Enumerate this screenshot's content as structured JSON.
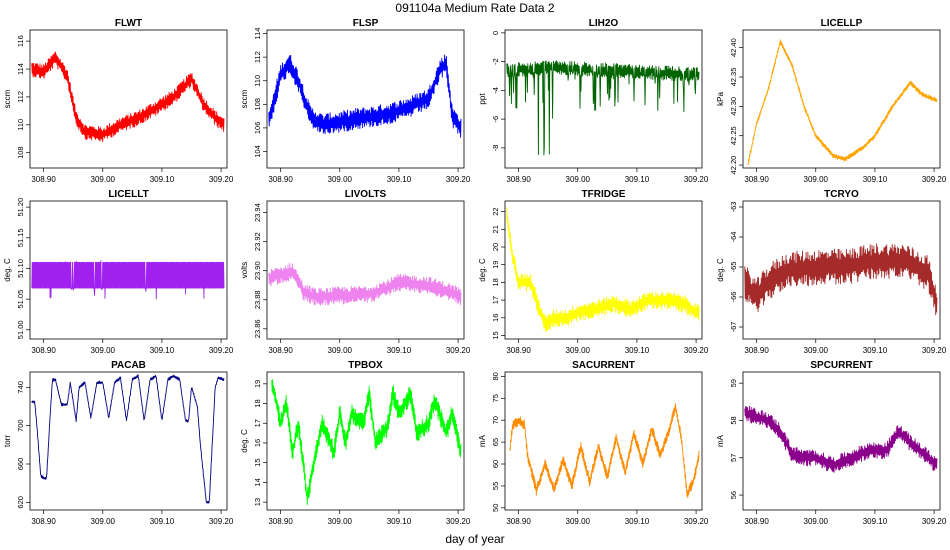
{
  "figure": {
    "title": "091104a   Medium Rate Data 2",
    "xlabel": "day of year"
  },
  "chart_data": [
    {
      "type": "line",
      "title": "FLWT",
      "ylabel": "sccm",
      "color": "#ff0000",
      "noise": 0.55,
      "xlim": [
        308.877,
        309.21
      ],
      "ylim": [
        106.9,
        116.8
      ],
      "xticks": [
        308.9,
        309.0,
        309.1,
        309.2
      ],
      "xtick_labels": [
        "308.90",
        "309.00",
        "309.10",
        "309.20"
      ],
      "yticks": [
        108,
        110,
        112,
        114,
        116
      ],
      "ytick_labels": [
        "108",
        "110",
        "112",
        "114",
        "116"
      ],
      "series": [
        {
          "name": "FLWT",
          "x": [
            308.88,
            308.9,
            308.92,
            308.94,
            308.955,
            308.97,
            309.0,
            309.03,
            309.06,
            309.09,
            309.12,
            309.15,
            309.17,
            309.19,
            309.205
          ],
          "y": [
            114,
            113.8,
            114.8,
            113.5,
            110.5,
            109.5,
            109.3,
            110,
            110.5,
            111.2,
            112,
            113.3,
            111.5,
            110.5,
            110
          ]
        }
      ]
    },
    {
      "type": "line",
      "title": "FLSP",
      "ylabel": "sccm",
      "color": "#0000ff",
      "noise": 0.9,
      "xlim": [
        308.877,
        309.21
      ],
      "ylim": [
        102.6,
        114.3
      ],
      "xticks": [
        308.9,
        309.0,
        309.1,
        309.2
      ],
      "xtick_labels": [
        "308.90",
        "309.00",
        "309.10",
        "309.20"
      ],
      "yticks": [
        104,
        106,
        108,
        110,
        112,
        114
      ],
      "ytick_labels": [
        "104",
        "106",
        "108",
        "110",
        "112",
        "114"
      ],
      "series": [
        {
          "name": "FLSP",
          "x": [
            308.88,
            308.9,
            308.915,
            308.93,
            308.95,
            308.97,
            309.0,
            309.03,
            309.06,
            309.09,
            309.12,
            309.15,
            309.17,
            309.18,
            309.19,
            309.205
          ],
          "y": [
            106.5,
            110.5,
            111.5,
            110,
            107,
            106.3,
            106.5,
            106.8,
            107,
            107.3,
            107.8,
            108.5,
            111,
            111.5,
            107,
            106
          ]
        }
      ]
    },
    {
      "type": "line",
      "title": "LIH2O",
      "ylabel": "ppt",
      "color": "#006400",
      "noise": 0.5,
      "spikes": "down",
      "xlim": [
        308.877,
        309.21
      ],
      "ylim": [
        -9.4,
        0.2
      ],
      "xticks": [
        308.9,
        309.0,
        309.1,
        309.2
      ],
      "xtick_labels": [
        "308.90",
        "309.00",
        "309.10",
        "309.20"
      ],
      "yticks": [
        -8,
        -6,
        -4,
        -2,
        0
      ],
      "ytick_labels": [
        "-8",
        "-6",
        "-4",
        "-2",
        "0"
      ],
      "series": [
        {
          "name": "LIH2O",
          "x": [
            308.88,
            308.92,
            308.96,
            309.0,
            309.05,
            309.1,
            309.15,
            309.205
          ],
          "y": [
            -2.6,
            -2.5,
            -2.4,
            -2.5,
            -2.6,
            -2.7,
            -2.8,
            -2.9
          ]
        }
      ]
    },
    {
      "type": "line",
      "title": "LICELLP",
      "ylabel": "kPa",
      "color": "#ffa500",
      "noise": 0.004,
      "xlim": [
        308.877,
        309.21
      ],
      "ylim": [
        42.195,
        42.43
      ],
      "xticks": [
        308.9,
        309.0,
        309.1,
        309.2
      ],
      "xtick_labels": [
        "308.90",
        "309.00",
        "309.10",
        "309.20"
      ],
      "yticks": [
        42.2,
        42.25,
        42.3,
        42.35,
        42.4
      ],
      "ytick_labels": [
        "42.20",
        "42.25",
        "42.30",
        "42.35",
        "42.40"
      ],
      "series": [
        {
          "name": "LICELLP",
          "x": [
            308.885,
            308.9,
            308.92,
            308.94,
            308.96,
            308.98,
            309.0,
            309.03,
            309.05,
            309.08,
            309.1,
            309.13,
            309.16,
            309.18,
            309.205
          ],
          "y": [
            42.2,
            42.27,
            42.33,
            42.41,
            42.37,
            42.3,
            42.25,
            42.215,
            42.21,
            42.23,
            42.25,
            42.3,
            42.34,
            42.32,
            42.31
          ]
        }
      ]
    },
    {
      "type": "line",
      "title": "LICELLT",
      "ylabel": "deg. C",
      "color": "#a020f0",
      "noise": 0.0,
      "band": [
        51.068,
        51.11
      ],
      "spikes": "both",
      "xlim": [
        308.877,
        309.21
      ],
      "ylim": [
        50.985,
        51.21
      ],
      "xticks": [
        308.9,
        309.0,
        309.1,
        309.2
      ],
      "xtick_labels": [
        "308.90",
        "309.00",
        "309.10",
        "309.20"
      ],
      "yticks": [
        51.0,
        51.05,
        51.1,
        51.15,
        51.2
      ],
      "ytick_labels": [
        "51.00",
        "51.05",
        "51.10",
        "51.15",
        "51.20"
      ],
      "series": [
        {
          "name": "LICELLT",
          "x": [
            308.88,
            309.205
          ],
          "y": [
            51.09,
            51.09
          ]
        }
      ]
    },
    {
      "type": "line",
      "title": "LIVOLTS",
      "ylabel": "volts",
      "color": "#ee82ee",
      "noise": 0.006,
      "xlim": [
        308.877,
        309.21
      ],
      "ylim": [
        23.853,
        23.948
      ],
      "xticks": [
        308.9,
        309.0,
        309.1,
        309.2
      ],
      "xtick_labels": [
        "308.90",
        "309.00",
        "309.10",
        "309.20"
      ],
      "yticks": [
        23.86,
        23.88,
        23.9,
        23.92,
        23.94
      ],
      "ytick_labels": [
        "23.86",
        "23.88",
        "23.90",
        "23.92",
        "23.94"
      ],
      "series": [
        {
          "name": "LIVOLTS",
          "x": [
            308.88,
            308.9,
            308.92,
            308.94,
            308.96,
            309.0,
            309.05,
            309.08,
            309.1,
            309.15,
            309.19,
            309.205
          ],
          "y": [
            23.895,
            23.897,
            23.9,
            23.885,
            23.882,
            23.883,
            23.884,
            23.888,
            23.892,
            23.89,
            23.885,
            23.882
          ]
        }
      ]
    },
    {
      "type": "line",
      "title": "TFRIDGE",
      "ylabel": "deg. C",
      "color": "#ffff00",
      "noise": 0.5,
      "xlim": [
        308.877,
        309.21
      ],
      "ylim": [
        14.8,
        22.6
      ],
      "xticks": [
        308.9,
        309.0,
        309.1,
        309.2
      ],
      "xtick_labels": [
        "308.90",
        "309.00",
        "309.10",
        "309.20"
      ],
      "yticks": [
        15,
        16,
        17,
        18,
        19,
        20,
        21,
        22
      ],
      "ytick_labels": [
        "15",
        "16",
        "17",
        "18",
        "19",
        "20",
        "21",
        "22"
      ],
      "series": [
        {
          "name": "TFRIDGE",
          "x": [
            308.88,
            308.89,
            308.9,
            308.92,
            308.935,
            308.945,
            308.96,
            308.98,
            309.0,
            309.03,
            309.06,
            309.09,
            309.12,
            309.15,
            309.18,
            309.205
          ],
          "y": [
            22,
            19.5,
            18,
            18,
            16.5,
            15.6,
            16,
            16,
            16.3,
            16.5,
            16.8,
            16.5,
            17,
            17,
            16.8,
            16.2
          ]
        }
      ]
    },
    {
      "type": "line",
      "title": "TCRYO",
      "ylabel": "deg. C",
      "color": "#a52a2a",
      "noise": 0.6,
      "xlim": [
        308.877,
        309.21
      ],
      "ylim": [
        -67.4,
        -62.8
      ],
      "xticks": [
        308.9,
        309.0,
        309.1,
        309.2
      ],
      "xtick_labels": [
        "308.90",
        "309.00",
        "309.10",
        "309.20"
      ],
      "yticks": [
        -67,
        -66,
        -65,
        -64,
        -63
      ],
      "ytick_labels": [
        "-67",
        "-66",
        "-65",
        "-64",
        "-63"
      ],
      "series": [
        {
          "name": "TCRYO",
          "x": [
            308.88,
            308.9,
            308.92,
            308.95,
            309.0,
            309.05,
            309.1,
            309.15,
            309.19,
            309.205
          ],
          "y": [
            -65.5,
            -66,
            -65.5,
            -65.1,
            -65,
            -65,
            -64.8,
            -64.8,
            -65.2,
            -66.3
          ]
        }
      ]
    },
    {
      "type": "line",
      "title": "PACAB",
      "ylabel": "torr",
      "color": "#000080",
      "noise": 1.5,
      "xlim": [
        308.877,
        309.21
      ],
      "ylim": [
        612,
        756
      ],
      "xticks": [
        308.9,
        309.0,
        309.1,
        309.2
      ],
      "xtick_labels": [
        "308.90",
        "309.00",
        "309.10",
        "309.20"
      ],
      "yticks": [
        620,
        660,
        700,
        740
      ],
      "ytick_labels": [
        "620",
        "660",
        "700",
        "740"
      ],
      "series": [
        {
          "name": "PACAB",
          "x": [
            308.88,
            308.885,
            308.89,
            308.895,
            308.9,
            308.905,
            308.91,
            308.915,
            308.92,
            308.93,
            308.94,
            308.945,
            308.955,
            308.96,
            308.97,
            308.98,
            308.99,
            309.0,
            309.01,
            309.02,
            309.03,
            309.04,
            309.05,
            309.06,
            309.07,
            309.08,
            309.09,
            309.1,
            309.11,
            309.12,
            309.13,
            309.14,
            309.145,
            309.15,
            309.16,
            309.165,
            309.175,
            309.18,
            309.19,
            309.195,
            309.205
          ],
          "y": [
            725,
            725,
            690,
            648,
            645,
            645,
            700,
            748,
            748,
            722,
            722,
            745,
            705,
            740,
            745,
            708,
            745,
            745,
            708,
            745,
            750,
            705,
            748,
            752,
            705,
            748,
            752,
            705,
            748,
            752,
            748,
            705,
            705,
            740,
            720,
            680,
            620,
            620,
            740,
            750,
            748
          ]
        }
      ]
    },
    {
      "type": "line",
      "title": "TPBOX",
      "ylabel": "deg. C",
      "color": "#00ff00",
      "noise": 0.5,
      "xlim": [
        308.877,
        309.21
      ],
      "ylim": [
        12.6,
        19.6
      ],
      "xticks": [
        308.9,
        309.0,
        309.1,
        309.2
      ],
      "xtick_labels": [
        "308.90",
        "309.00",
        "309.10",
        "309.20"
      ],
      "yticks": [
        13,
        14,
        15,
        16,
        17,
        18,
        19
      ],
      "ytick_labels": [
        "13",
        "14",
        "15",
        "16",
        "17",
        "18",
        "19"
      ],
      "series": [
        {
          "name": "TPBOX",
          "x": [
            308.885,
            308.89,
            308.9,
            308.91,
            308.92,
            308.93,
            308.94,
            308.945,
            308.96,
            308.97,
            308.99,
            309.0,
            309.01,
            309.02,
            309.04,
            309.05,
            309.06,
            309.08,
            309.09,
            309.1,
            309.12,
            309.13,
            309.15,
            309.16,
            309.18,
            309.19,
            309.205
          ],
          "y": [
            19,
            18.5,
            17,
            18,
            15.5,
            17,
            14.5,
            13.2,
            15.5,
            17,
            15.5,
            17.5,
            16,
            17.5,
            17,
            18.5,
            16,
            16.8,
            18.5,
            17.5,
            18.5,
            16.5,
            17,
            18.2,
            16.5,
            17.5,
            15.5
          ]
        }
      ]
    },
    {
      "type": "line",
      "title": "SACURRENT",
      "ylabel": "mA",
      "color": "#ff8c00",
      "noise": 1.2,
      "xlim": [
        308.877,
        309.21
      ],
      "ylim": [
        49.5,
        81
      ],
      "xticks": [
        308.9,
        309.0,
        309.1,
        309.2
      ],
      "xtick_labels": [
        "308.90",
        "309.00",
        "309.10",
        "309.20"
      ],
      "yticks": [
        50,
        55,
        60,
        65,
        70,
        75,
        80
      ],
      "ytick_labels": [
        "50",
        "55",
        "60",
        "65",
        "70",
        "75",
        "80"
      ],
      "series": [
        {
          "name": "SACURRENT",
          "x": [
            308.885,
            308.89,
            308.9,
            308.91,
            308.915,
            308.93,
            308.945,
            308.96,
            308.975,
            308.99,
            309.005,
            309.02,
            309.035,
            309.05,
            309.065,
            309.08,
            309.095,
            309.11,
            309.125,
            309.14,
            309.155,
            309.165,
            309.175,
            309.185,
            309.195,
            309.205
          ],
          "y": [
            63,
            69,
            70,
            69,
            62,
            54,
            60,
            54,
            61,
            55,
            64,
            56,
            64,
            57,
            66,
            58,
            67,
            60,
            68,
            62,
            68,
            73,
            66,
            53,
            56,
            62
          ]
        }
      ]
    },
    {
      "type": "line",
      "title": "SPCURRENT",
      "ylabel": "mA",
      "color": "#8b008b",
      "noise": 0.22,
      "xlim": [
        308.877,
        309.21
      ],
      "ylim": [
        55.6,
        59.3
      ],
      "xticks": [
        308.9,
        309.0,
        309.1,
        309.2
      ],
      "xtick_labels": [
        "308.90",
        "309.00",
        "309.10",
        "309.20"
      ],
      "yticks": [
        56,
        57,
        58,
        59
      ],
      "ytick_labels": [
        "56",
        "57",
        "58",
        "59"
      ],
      "series": [
        {
          "name": "SPCURRENT",
          "x": [
            308.88,
            308.9,
            308.92,
            308.94,
            308.96,
            308.98,
            309.0,
            309.03,
            309.06,
            309.09,
            309.12,
            309.14,
            309.16,
            309.19,
            309.205
          ],
          "y": [
            58.2,
            58.1,
            58,
            57.7,
            57.1,
            57,
            57,
            56.8,
            57,
            57.2,
            57.2,
            57.7,
            57.4,
            57,
            56.8
          ]
        }
      ]
    }
  ]
}
